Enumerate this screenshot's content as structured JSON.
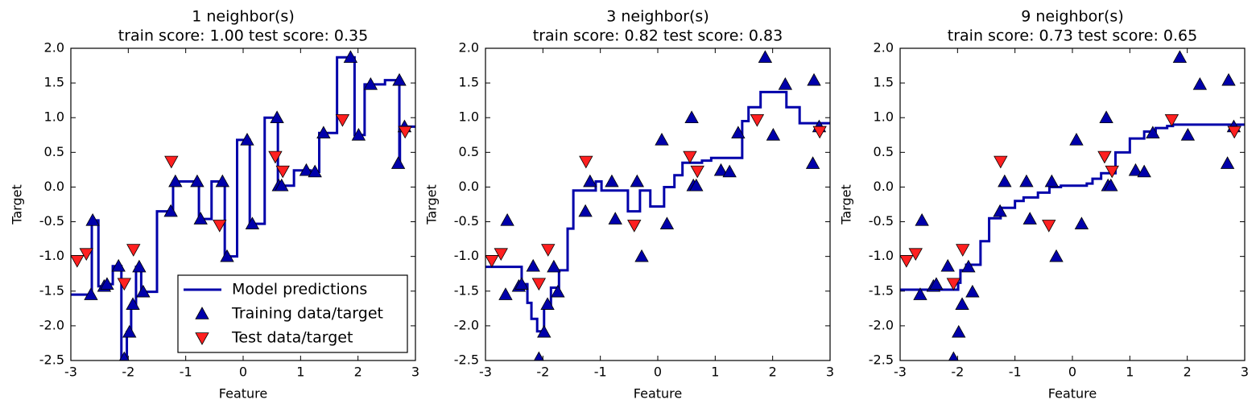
{
  "chart_data": [
    {
      "type": "line",
      "title": "1 neighbor(s)",
      "subtitle": "train score: 1.00 test score: 0.35",
      "xlabel": "Feature",
      "ylabel": "Target",
      "xlim": [
        -3,
        3
      ],
      "ylim": [
        -2.5,
        2
      ],
      "xticks": [
        -3,
        -2,
        -1,
        0,
        1,
        2,
        3
      ],
      "yticks": [
        {
          "value": -2.5,
          "label": "-2.5"
        },
        {
          "value": -2,
          "label": "-2.0"
        },
        {
          "value": -1.5,
          "label": "-1.5"
        },
        {
          "value": -1,
          "label": "-1.0"
        },
        {
          "value": -0.5,
          "label": "-0.5"
        },
        {
          "value": 0,
          "label": "0.0"
        },
        0.5,
        {
          "value": 1,
          "label": "1.0"
        },
        1.5,
        {
          "value": 2,
          "label": "2.0"
        }
      ],
      "legend": "lower right",
      "series": [
        {
          "name": "Model predictions",
          "type": "line",
          "drawstyle": "steps-post",
          "color": "#0000aa",
          "x": [
            -3,
            -2.635,
            -2.52,
            -2.395,
            -2.27,
            -2.12,
            -2.025,
            -1.95,
            -1.865,
            -1.775,
            -1.5,
            -1.22,
            -0.77,
            -0.55,
            -0.32,
            -0.105,
            0.115,
            0.375,
            0.605,
            0.885,
            1.175,
            1.325,
            1.635,
            1.94,
            2.115,
            2.47,
            2.72,
            2.73,
            3
          ],
          "values": [
            -1.55,
            -0.48,
            -1.43,
            -1.4,
            -1.14,
            -2.47,
            -2.09,
            -1.69,
            -1.15,
            -1.51,
            -0.35,
            0.08,
            -0.46,
            0.08,
            -1.0,
            0.68,
            -0.53,
            1.0,
            0.02,
            0.24,
            0.22,
            0.78,
            1.87,
            0.75,
            1.48,
            1.54,
            0.34,
            0.87,
            0.87
          ]
        },
        {
          "name": "Training data/target",
          "type": "scatter",
          "marker": "^",
          "color": "#0000aa",
          "x": [
            -2.65,
            -2.62,
            -2.42,
            -2.37,
            -2.17,
            -2.07,
            -1.98,
            -1.92,
            -1.81,
            -1.74,
            -1.26,
            -1.18,
            -0.8,
            -0.74,
            -0.36,
            -0.28,
            0.07,
            0.16,
            0.59,
            0.62,
            0.67,
            1.1,
            1.25,
            1.4,
            1.87,
            2.01,
            2.22,
            2.72,
            2.7,
            2.81
          ],
          "values": [
            -1.55,
            -0.48,
            -1.43,
            -1.4,
            -1.14,
            -2.47,
            -2.09,
            -1.69,
            -1.15,
            -1.51,
            -0.35,
            0.08,
            0.08,
            -0.46,
            0.08,
            -1.0,
            0.68,
            -0.53,
            1.0,
            0.02,
            0.02,
            0.24,
            0.22,
            0.78,
            1.87,
            0.75,
            1.48,
            1.54,
            0.34,
            0.87
          ]
        },
        {
          "name": "Test data/target",
          "type": "scatter",
          "marker": "v",
          "color": "#ff2020",
          "x": [
            -2.89,
            -2.73,
            -2.07,
            -1.91,
            -1.25,
            -0.41,
            0.56,
            0.69,
            1.73,
            2.82
          ],
          "values": [
            -1.06,
            -0.96,
            -1.39,
            -0.9,
            0.37,
            -0.55,
            0.44,
            0.23,
            0.97,
            0.8
          ]
        }
      ]
    },
    {
      "type": "line",
      "title": "3 neighbor(s)",
      "subtitle": "train score: 0.82 test score: 0.83",
      "xlabel": "Feature",
      "ylabel": "Target",
      "xlim": [
        -3,
        3
      ],
      "ylim": [
        -2.5,
        2
      ],
      "xticks": [
        -3,
        -2,
        -1,
        0,
        1,
        2,
        3
      ],
      "yticks": [
        {
          "value": -2.5,
          "label": "-2.5"
        },
        {
          "value": -2,
          "label": "-2.0"
        },
        {
          "value": -1.5,
          "label": "-1.5"
        },
        {
          "value": -1,
          "label": "-1.0"
        },
        {
          "value": -0.5,
          "label": "-0.5"
        },
        {
          "value": 0,
          "label": "0.0"
        },
        0.5,
        {
          "value": 1,
          "label": "1.0"
        },
        1.5,
        {
          "value": 2,
          "label": "2.0"
        }
      ],
      "series": [
        {
          "type": "line",
          "drawstyle": "steps-post",
          "color": "#0000aa",
          "x": [
            -3,
            -2.37,
            -2.27,
            -2.2,
            -2.1,
            -1.98,
            -1.86,
            -1.72,
            -1.57,
            -1.47,
            -1.08,
            -0.98,
            -0.52,
            -0.31,
            -0.13,
            0.11,
            0.29,
            0.43,
            0.77,
            0.93,
            1.47,
            1.58,
            1.79,
            2.24,
            2.47,
            3
          ],
          "values": [
            -1.15,
            -1.4,
            -1.67,
            -1.9,
            -2.08,
            -1.75,
            -1.45,
            -1.2,
            -0.6,
            -0.05,
            0.08,
            -0.05,
            -0.35,
            -0.05,
            -0.28,
            0.0,
            0.17,
            0.35,
            0.38,
            0.42,
            0.95,
            1.15,
            1.37,
            1.15,
            0.92,
            0.92
          ]
        },
        {
          "type": "scatter",
          "marker": "^",
          "color": "#0000aa",
          "x": [
            -2.65,
            -2.62,
            -2.42,
            -2.37,
            -2.17,
            -2.07,
            -1.98,
            -1.92,
            -1.81,
            -1.74,
            -1.26,
            -1.18,
            -0.8,
            -0.74,
            -0.36,
            -0.28,
            0.07,
            0.16,
            0.59,
            0.62,
            0.67,
            1.1,
            1.25,
            1.4,
            1.87,
            2.01,
            2.22,
            2.72,
            2.7,
            2.81
          ],
          "values": [
            -1.55,
            -0.48,
            -1.43,
            -1.4,
            -1.14,
            -2.47,
            -2.09,
            -1.69,
            -1.15,
            -1.51,
            -0.35,
            0.08,
            0.08,
            -0.46,
            0.08,
            -1.0,
            0.68,
            -0.53,
            1.0,
            0.02,
            0.02,
            0.24,
            0.22,
            0.78,
            1.87,
            0.75,
            1.48,
            1.54,
            0.34,
            0.87
          ]
        },
        {
          "type": "scatter",
          "marker": "v",
          "color": "#ff2020",
          "x": [
            -2.89,
            -2.73,
            -2.07,
            -1.91,
            -1.25,
            -0.41,
            0.56,
            0.69,
            1.73,
            2.82
          ],
          "values": [
            -1.06,
            -0.96,
            -1.39,
            -0.9,
            0.37,
            -0.55,
            0.44,
            0.23,
            0.97,
            0.8
          ]
        }
      ]
    },
    {
      "type": "line",
      "title": "9 neighbor(s)",
      "subtitle": "train score: 0.73 test score: 0.65",
      "xlabel": "Feature",
      "ylabel": "Target",
      "xlim": [
        -3,
        3
      ],
      "ylim": [
        -2.5,
        2
      ],
      "xticks": [
        -3,
        -2,
        -1,
        0,
        1,
        2,
        3
      ],
      "yticks": [
        {
          "value": -2.5,
          "label": "-2.5"
        },
        {
          "value": -2,
          "label": "-2.0"
        },
        {
          "value": -1.5,
          "label": "-1.5"
        },
        {
          "value": -1,
          "label": "-1.0"
        },
        {
          "value": -0.5,
          "label": "-0.5"
        },
        {
          "value": 0,
          "label": "0.0"
        },
        0.5,
        {
          "value": 1,
          "label": "1.0"
        },
        1.5,
        {
          "value": 2,
          "label": "2.0"
        }
      ],
      "series": [
        {
          "type": "line",
          "drawstyle": "steps-post",
          "color": "#0000aa",
          "x": [
            -3,
            -1.99,
            -1.95,
            -1.85,
            -1.6,
            -1.45,
            -1.25,
            -1.0,
            -0.85,
            -0.6,
            -0.4,
            -0.2,
            0.25,
            0.35,
            0.5,
            0.75,
            1.0,
            1.25,
            1.45,
            1.65,
            1.75,
            3
          ],
          "values": [
            -1.48,
            -1.38,
            -1.2,
            -1.12,
            -0.78,
            -0.45,
            -0.3,
            -0.2,
            -0.15,
            -0.08,
            0.0,
            0.02,
            0.05,
            0.12,
            0.2,
            0.5,
            0.7,
            0.8,
            0.85,
            0.88,
            0.9,
            0.9
          ]
        },
        {
          "type": "scatter",
          "marker": "^",
          "color": "#0000aa",
          "x": [
            -2.65,
            -2.62,
            -2.42,
            -2.37,
            -2.17,
            -2.07,
            -1.98,
            -1.92,
            -1.81,
            -1.74,
            -1.26,
            -1.18,
            -0.8,
            -0.74,
            -0.36,
            -0.28,
            0.07,
            0.16,
            0.59,
            0.62,
            0.67,
            1.1,
            1.25,
            1.4,
            1.87,
            2.01,
            2.22,
            2.72,
            2.7,
            2.81
          ],
          "values": [
            -1.55,
            -0.48,
            -1.43,
            -1.4,
            -1.14,
            -2.47,
            -2.09,
            -1.69,
            -1.15,
            -1.51,
            -0.35,
            0.08,
            0.08,
            -0.46,
            0.08,
            -1.0,
            0.68,
            -0.53,
            1.0,
            0.02,
            0.02,
            0.24,
            0.22,
            0.78,
            1.87,
            0.75,
            1.48,
            1.54,
            0.34,
            0.87
          ]
        },
        {
          "type": "scatter",
          "marker": "v",
          "color": "#ff2020",
          "x": [
            -2.89,
            -2.73,
            -2.07,
            -1.91,
            -1.25,
            -0.41,
            0.56,
            0.69,
            1.73,
            2.82
          ],
          "values": [
            -1.06,
            -0.96,
            -1.39,
            -0.9,
            0.37,
            -0.55,
            0.44,
            0.23,
            0.97,
            0.8
          ]
        }
      ]
    }
  ]
}
